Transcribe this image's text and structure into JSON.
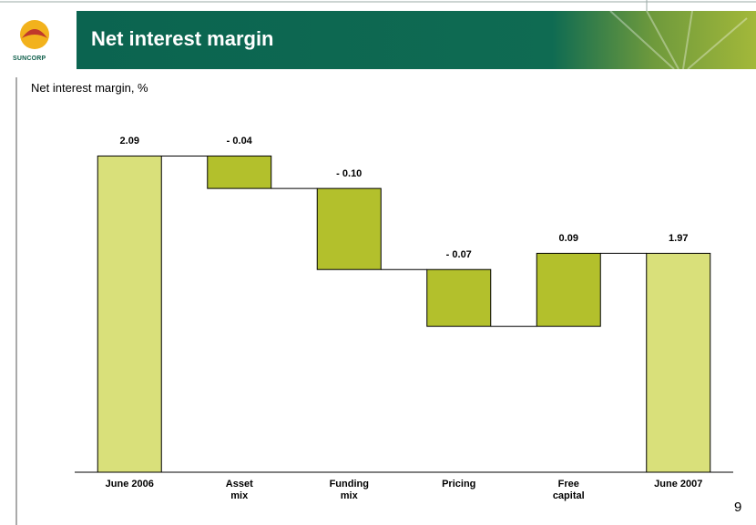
{
  "header": {
    "title": "Net interest margin",
    "logo_text": "SUNCORP"
  },
  "page_number": "9",
  "chart_data": {
    "type": "waterfall",
    "subtitle": "Net interest margin, %",
    "categories": [
      "June 2006",
      "Asset\nmix",
      "Funding\nmix",
      "Pricing",
      "Free\ncapital",
      "June 2007"
    ],
    "values": [
      2.09,
      -0.04,
      -0.1,
      -0.07,
      0.09,
      1.97
    ],
    "value_labels": [
      "2.09",
      "- 0.04",
      "- 0.10",
      "- 0.07",
      "0.09",
      "1.97"
    ],
    "totals": [
      true,
      false,
      false,
      false,
      false,
      true
    ],
    "colors": {
      "total": "#d9e07a",
      "change": "#b3c02c"
    },
    "ylim": [
      1.7,
      2.15
    ]
  }
}
